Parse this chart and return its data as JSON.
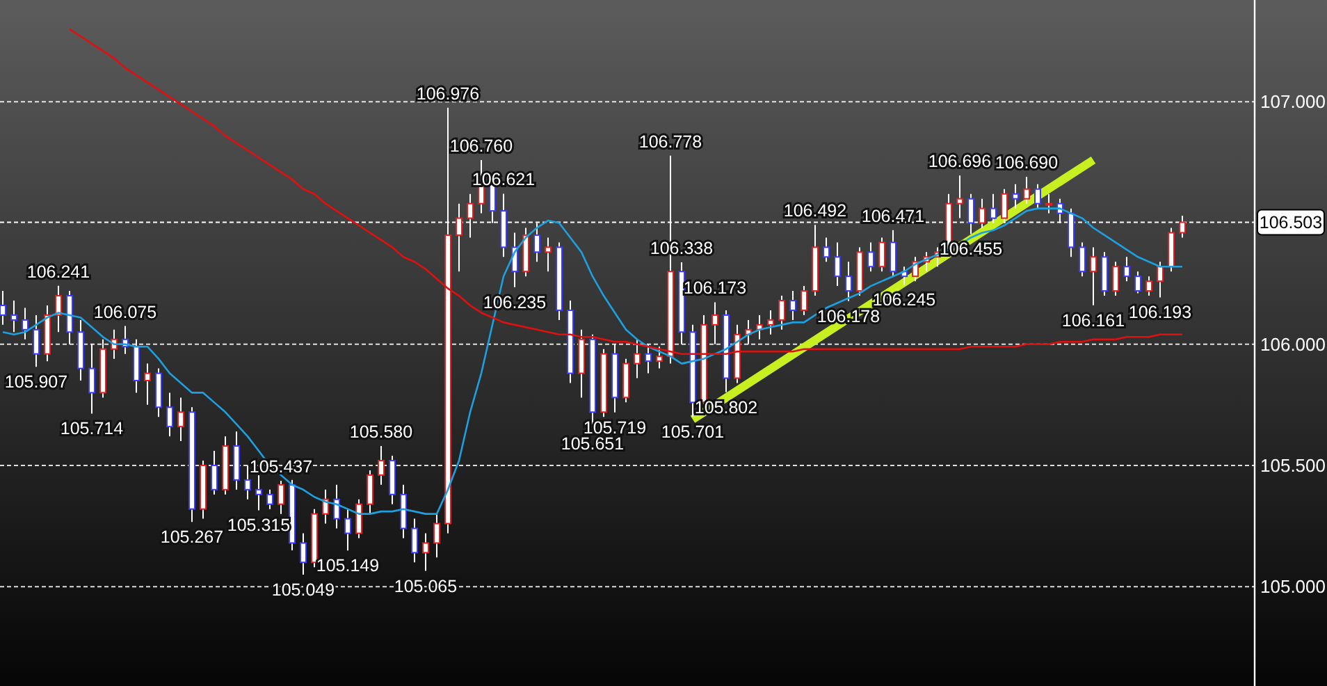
{
  "chart_data": {
    "type": "candlestick",
    "categories": [
      null,
      null,
      null,
      null,
      null,
      null,
      null,
      null,
      null,
      null,
      null,
      null,
      null,
      null,
      null,
      null,
      null,
      null,
      null,
      null,
      null,
      null,
      null,
      null,
      null,
      null,
      null,
      null,
      null,
      null,
      null,
      null,
      null,
      null,
      null,
      null,
      null,
      null,
      null,
      null,
      null,
      null,
      null,
      null,
      null,
      null,
      null,
      null,
      null,
      null,
      null,
      null,
      null,
      null,
      null,
      null,
      null,
      null,
      null,
      null,
      null,
      null,
      null,
      null,
      null,
      null,
      null,
      null,
      null,
      null,
      null,
      null,
      null,
      null,
      null,
      null,
      null,
      null,
      null,
      null,
      null,
      null,
      null,
      null,
      null,
      null,
      null,
      null,
      null,
      null,
      null,
      null,
      null,
      null,
      null,
      null,
      null,
      null,
      null,
      null,
      null,
      null,
      null,
      null,
      null,
      null,
      null
    ],
    "ohlc": [
      [
        106.16,
        106.22,
        106.08,
        106.12
      ],
      [
        106.12,
        106.18,
        106.05,
        106.1
      ],
      [
        106.1,
        106.15,
        106.02,
        106.06
      ],
      [
        106.06,
        106.12,
        105.907,
        105.96
      ],
      [
        105.96,
        106.16,
        105.93,
        106.12
      ],
      [
        106.12,
        106.241,
        106.05,
        106.2
      ],
      [
        106.2,
        106.22,
        106.0,
        106.05
      ],
      [
        106.05,
        106.1,
        105.85,
        105.9
      ],
      [
        105.9,
        106.0,
        105.714,
        105.8
      ],
      [
        105.8,
        106.02,
        105.78,
        105.98
      ],
      [
        105.98,
        106.06,
        105.94,
        106.02
      ],
      [
        106.02,
        106.075,
        105.96,
        105.99
      ],
      [
        105.99,
        106.02,
        105.8,
        105.85
      ],
      [
        105.85,
        105.92,
        105.75,
        105.88
      ],
      [
        105.88,
        105.9,
        105.7,
        105.74
      ],
      [
        105.74,
        105.8,
        105.62,
        105.66
      ],
      [
        105.66,
        105.78,
        105.6,
        105.72
      ],
      [
        105.72,
        105.74,
        105.267,
        105.32
      ],
      [
        105.32,
        105.52,
        105.28,
        105.5
      ],
      [
        105.5,
        105.56,
        105.38,
        105.4
      ],
      [
        105.4,
        105.62,
        105.38,
        105.58
      ],
      [
        105.58,
        105.64,
        105.4,
        105.44
      ],
      [
        105.44,
        105.5,
        105.36,
        105.4
      ],
      [
        105.4,
        105.46,
        105.315,
        105.38
      ],
      [
        105.38,
        105.4,
        105.32,
        105.34
      ],
      [
        105.34,
        105.437,
        105.3,
        105.42
      ],
      [
        105.42,
        105.44,
        105.15,
        105.18
      ],
      [
        105.18,
        105.22,
        105.049,
        105.1
      ],
      [
        105.1,
        105.32,
        105.08,
        105.3
      ],
      [
        105.3,
        105.4,
        105.26,
        105.36
      ],
      [
        105.36,
        105.42,
        105.24,
        105.28
      ],
      [
        105.28,
        105.32,
        105.149,
        105.22
      ],
      [
        105.22,
        105.36,
        105.2,
        105.34
      ],
      [
        105.34,
        105.48,
        105.3,
        105.46
      ],
      [
        105.46,
        105.58,
        105.42,
        105.52
      ],
      [
        105.52,
        105.54,
        105.34,
        105.38
      ],
      [
        105.38,
        105.42,
        105.2,
        105.24
      ],
      [
        105.24,
        105.28,
        105.1,
        105.14
      ],
      [
        105.14,
        105.22,
        105.065,
        105.18
      ],
      [
        105.18,
        105.3,
        105.12,
        105.26
      ],
      [
        105.26,
        106.976,
        105.22,
        106.45
      ],
      [
        106.45,
        106.58,
        106.3,
        106.52
      ],
      [
        106.52,
        106.62,
        106.44,
        106.58
      ],
      [
        106.58,
        106.76,
        106.54,
        106.66
      ],
      [
        106.66,
        106.68,
        106.5,
        106.55
      ],
      [
        106.55,
        106.621,
        106.36,
        106.4
      ],
      [
        106.4,
        106.46,
        106.235,
        106.3
      ],
      [
        106.3,
        106.48,
        106.28,
        106.45
      ],
      [
        106.45,
        106.5,
        106.34,
        106.38
      ],
      [
        106.38,
        106.44,
        106.3,
        106.4
      ],
      [
        106.4,
        106.42,
        106.1,
        106.14
      ],
      [
        106.14,
        106.18,
        105.84,
        105.88
      ],
      [
        105.88,
        106.06,
        105.78,
        106.02
      ],
      [
        106.02,
        106.04,
        105.651,
        105.72
      ],
      [
        105.72,
        105.98,
        105.7,
        105.96
      ],
      [
        105.96,
        106.0,
        105.719,
        105.78
      ],
      [
        105.78,
        105.94,
        105.76,
        105.92
      ],
      [
        105.92,
        106.02,
        105.86,
        105.96
      ],
      [
        105.96,
        106.0,
        105.88,
        105.93
      ],
      [
        105.93,
        105.99,
        105.9,
        105.95
      ],
      [
        105.95,
        106.778,
        105.92,
        106.3
      ],
      [
        106.3,
        106.338,
        106.0,
        106.05
      ],
      [
        106.05,
        106.08,
        105.701,
        105.76
      ],
      [
        105.76,
        106.12,
        105.74,
        106.08
      ],
      [
        106.08,
        106.173,
        106.0,
        106.12
      ],
      [
        106.12,
        106.14,
        105.802,
        105.86
      ],
      [
        105.86,
        106.08,
        105.84,
        106.04
      ],
      [
        106.04,
        106.1,
        106.0,
        106.06
      ],
      [
        106.06,
        106.12,
        106.02,
        106.08
      ],
      [
        106.08,
        106.14,
        106.04,
        106.1
      ],
      [
        106.1,
        106.2,
        106.06,
        106.18
      ],
      [
        106.18,
        106.22,
        106.1,
        106.14
      ],
      [
        106.14,
        106.24,
        106.12,
        106.22
      ],
      [
        106.22,
        106.492,
        106.2,
        106.4
      ],
      [
        106.4,
        106.44,
        106.34,
        106.36
      ],
      [
        106.36,
        106.42,
        106.24,
        106.28
      ],
      [
        106.28,
        106.34,
        106.178,
        106.22
      ],
      [
        106.22,
        106.4,
        106.2,
        106.38
      ],
      [
        106.38,
        106.42,
        106.3,
        106.32
      ],
      [
        106.32,
        106.44,
        106.3,
        106.42
      ],
      [
        106.42,
        106.471,
        106.28,
        106.3
      ],
      [
        106.3,
        106.32,
        106.245,
        106.28
      ],
      [
        106.28,
        106.36,
        106.26,
        106.34
      ],
      [
        106.34,
        106.38,
        106.3,
        106.36
      ],
      [
        106.36,
        106.4,
        106.32,
        106.38
      ],
      [
        106.38,
        106.62,
        106.36,
        106.58
      ],
      [
        106.58,
        106.696,
        106.52,
        106.6
      ],
      [
        106.6,
        106.62,
        106.455,
        106.5
      ],
      [
        106.5,
        106.6,
        106.48,
        106.56
      ],
      [
        106.56,
        106.62,
        106.5,
        106.52
      ],
      [
        106.52,
        106.64,
        106.5,
        106.62
      ],
      [
        106.62,
        106.66,
        106.56,
        106.6
      ],
      [
        106.6,
        106.69,
        106.58,
        106.64
      ],
      [
        106.64,
        106.66,
        106.56,
        106.58
      ],
      [
        106.58,
        106.62,
        106.54,
        106.58
      ],
      [
        106.58,
        106.6,
        106.5,
        106.54
      ],
      [
        106.54,
        106.56,
        106.36,
        106.4
      ],
      [
        106.4,
        106.42,
        106.28,
        106.3
      ],
      [
        106.3,
        106.4,
        106.161,
        106.36
      ],
      [
        106.36,
        106.38,
        106.2,
        106.22
      ],
      [
        106.22,
        106.34,
        106.2,
        106.32
      ],
      [
        106.32,
        106.36,
        106.26,
        106.28
      ],
      [
        106.28,
        106.3,
        106.21,
        106.22
      ],
      [
        106.22,
        106.28,
        106.2,
        106.26
      ],
      [
        106.26,
        106.34,
        106.193,
        106.32
      ],
      [
        106.32,
        106.48,
        106.3,
        106.46
      ],
      [
        106.46,
        106.53,
        106.44,
        106.503
      ]
    ],
    "colors": [
      "#3a3aff",
      "#3a3aff",
      "#3a3aff",
      "#3a3aff",
      "#e02020",
      "#e02020",
      "#3a3aff",
      "#3a3aff",
      "#3a3aff",
      "#e02020",
      "#e02020",
      "#3a3aff",
      "#3a3aff",
      "#e02020",
      "#3a3aff",
      "#3a3aff",
      "#e02020",
      "#3a3aff",
      "#e02020",
      "#3a3aff",
      "#e02020",
      "#3a3aff",
      "#3a3aff",
      "#3a3aff",
      "#3a3aff",
      "#e02020",
      "#3a3aff",
      "#3a3aff",
      "#e02020",
      "#e02020",
      "#3a3aff",
      "#3a3aff",
      "#e02020",
      "#e02020",
      "#e02020",
      "#3a3aff",
      "#3a3aff",
      "#3a3aff",
      "#e02020",
      "#e02020",
      "#e02020",
      "#e02020",
      "#e02020",
      "#e02020",
      "#3a3aff",
      "#3a3aff",
      "#3a3aff",
      "#e02020",
      "#3a3aff",
      "#e02020",
      "#3a3aff",
      "#3a3aff",
      "#e02020",
      "#3a3aff",
      "#e02020",
      "#3a3aff",
      "#e02020",
      "#e02020",
      "#3a3aff",
      "#e02020",
      "#e02020",
      "#3a3aff",
      "#3a3aff",
      "#e02020",
      "#e02020",
      "#3a3aff",
      "#e02020",
      "#e02020",
      "#e02020",
      "#e02020",
      "#e02020",
      "#3a3aff",
      "#e02020",
      "#e02020",
      "#3a3aff",
      "#3a3aff",
      "#3a3aff",
      "#e02020",
      "#3a3aff",
      "#e02020",
      "#3a3aff",
      "#3a3aff",
      "#e02020",
      "#e02020",
      "#e02020",
      "#e02020",
      "#e02020",
      "#3a3aff",
      "#e02020",
      "#3a3aff",
      "#e02020",
      "#3a3aff",
      "#e02020",
      "#3a3aff",
      "#e02020",
      "#3a3aff",
      "#3a3aff",
      "#3a3aff",
      "#e02020",
      "#3a3aff",
      "#e02020",
      "#3a3aff",
      "#3a3aff",
      "#e02020",
      "#e02020",
      "#e02020",
      "#e02020"
    ],
    "series": [
      {
        "type": "line",
        "color": "#1ea0e0",
        "values": [
          106.05,
          106.04,
          106.05,
          106.08,
          106.11,
          106.13,
          106.12,
          106.11,
          106.07,
          106.03,
          106.0,
          106.0,
          105.99,
          105.99,
          105.94,
          105.88,
          105.84,
          105.8,
          105.8,
          105.76,
          105.72,
          105.67,
          105.62,
          105.56,
          105.5,
          105.46,
          105.42,
          105.4,
          105.37,
          105.35,
          105.34,
          105.32,
          105.3,
          105.3,
          105.31,
          105.31,
          105.32,
          105.31,
          105.3,
          105.3,
          105.4,
          105.52,
          105.72,
          105.88,
          106.08,
          106.28,
          106.38,
          106.44,
          106.48,
          106.51,
          106.5,
          106.44,
          106.38,
          106.28,
          106.2,
          106.13,
          106.06,
          106.02,
          105.99,
          105.97,
          105.95,
          105.92,
          105.93,
          105.94,
          105.96,
          105.98,
          106.01,
          106.04,
          106.06,
          106.07,
          106.08,
          106.09,
          106.09,
          106.12,
          106.15,
          106.17,
          106.19,
          106.21,
          106.24,
          106.26,
          106.28,
          106.3,
          106.33,
          106.35,
          106.37,
          106.39,
          106.41,
          106.44,
          106.46,
          106.47,
          106.49,
          106.52,
          106.55,
          106.56,
          106.56,
          106.56,
          106.54,
          106.52,
          106.48,
          106.45,
          106.42,
          106.39,
          106.36,
          106.34,
          106.32,
          106.32,
          106.32
        ]
      },
      {
        "type": "line",
        "color": "#e01010",
        "values": [
          null,
          null,
          null,
          null,
          null,
          null,
          107.3,
          107.27,
          107.24,
          107.21,
          107.18,
          107.14,
          107.11,
          107.08,
          107.05,
          107.02,
          106.99,
          106.96,
          106.93,
          106.9,
          106.86,
          106.83,
          106.8,
          106.77,
          106.74,
          106.71,
          106.68,
          106.64,
          106.62,
          106.58,
          106.55,
          106.52,
          106.49,
          106.46,
          106.43,
          106.4,
          106.36,
          106.34,
          106.31,
          106.27,
          106.23,
          106.2,
          106.16,
          106.13,
          106.11,
          106.09,
          106.08,
          106.07,
          106.06,
          106.05,
          106.04,
          106.04,
          106.03,
          106.03,
          106.02,
          106.01,
          106.01,
          106.0,
          105.99,
          105.98,
          105.97,
          105.96,
          105.96,
          105.96,
          105.96,
          105.96,
          105.97,
          105.97,
          105.97,
          105.97,
          105.97,
          105.97,
          105.98,
          105.98,
          105.98,
          105.98,
          105.98,
          105.98,
          105.98,
          105.98,
          105.98,
          105.98,
          105.98,
          105.98,
          105.98,
          105.98,
          105.98,
          105.99,
          105.99,
          105.99,
          105.99,
          105.99,
          106.0,
          106.0,
          106.0,
          106.01,
          106.01,
          106.01,
          106.02,
          106.02,
          106.02,
          106.03,
          106.03,
          106.03,
          106.04,
          106.04,
          106.04
        ]
      },
      {
        "type": "line",
        "color": "#c8f020",
        "values": [
          null,
          null,
          null,
          null,
          null,
          null,
          null,
          null,
          null,
          null,
          null,
          null,
          null,
          null,
          null,
          null,
          null,
          null,
          null,
          null,
          null,
          null,
          null,
          null,
          null,
          null,
          null,
          null,
          null,
          null,
          null,
          null,
          null,
          null,
          null,
          null,
          null,
          null,
          null,
          null,
          null,
          null,
          null,
          null,
          null,
          null,
          null,
          null,
          null,
          null,
          null,
          null,
          null,
          null,
          null,
          null,
          null,
          null,
          null,
          null,
          null,
          null,
          105.69,
          null,
          null,
          null,
          null,
          null,
          null,
          null,
          null,
          null,
          null,
          null,
          null,
          null,
          null,
          null,
          null,
          null,
          null,
          null,
          null,
          null,
          null,
          null,
          null,
          null,
          null,
          null,
          null,
          null,
          null,
          null,
          null,
          null,
          null,
          null,
          106.76,
          null,
          null,
          null,
          null,
          null,
          null,
          null,
          null
        ]
      }
    ],
    "ylim": [
      104.59,
      107.42
    ],
    "yticks": [
      {
        "value": 105,
        "label": "105.000"
      },
      {
        "value": 105.5,
        "label": "105.500"
      },
      {
        "value": 106,
        "label": "106.000"
      },
      {
        "value": 107,
        "label": "107.000"
      }
    ],
    "grid": "y",
    "tick_labels": "y",
    "ref_lines": [
      {
        "axis": "y",
        "value": 106.503,
        "label": "106.503"
      }
    ],
    "annotations": [
      {
        "text": "106.241",
        "y": 106.241
      },
      {
        "text": "106.075",
        "y": 106.075
      },
      {
        "text": "105.907",
        "y": 105.907
      },
      {
        "text": "105.714",
        "y": 105.714
      },
      {
        "text": "105.267",
        "y": 105.267
      },
      {
        "text": "105.315",
        "y": 105.315
      },
      {
        "text": "105.437",
        "y": 105.437
      },
      {
        "text": "105.049",
        "y": 105.049
      },
      {
        "text": "105.149",
        "y": 105.149
      },
      {
        "text": "105.580",
        "y": 105.58
      },
      {
        "text": "105.065",
        "y": 105.065
      },
      {
        "text": "106.976",
        "y": 106.976
      },
      {
        "text": "106.760",
        "y": 106.76
      },
      {
        "text": "106.621",
        "y": 106.621
      },
      {
        "text": "106.235",
        "y": 106.235
      },
      {
        "text": "105.651",
        "y": 105.651
      },
      {
        "text": "105.719",
        "y": 105.719
      },
      {
        "text": "106.778",
        "y": 106.778
      },
      {
        "text": "106.338",
        "y": 106.338
      },
      {
        "text": "105.701",
        "y": 105.701
      },
      {
        "text": "106.173",
        "y": 106.173
      },
      {
        "text": "105.802",
        "y": 105.802
      },
      {
        "text": "106.492",
        "y": 106.492
      },
      {
        "text": "106.178",
        "y": 106.178
      },
      {
        "text": "106.471",
        "y": 106.471
      },
      {
        "text": "106.245",
        "y": 106.245
      },
      {
        "text": "106.696",
        "y": 106.696
      },
      {
        "text": "106.455",
        "y": 106.455
      },
      {
        "text": "106.690",
        "y": 106.69
      },
      {
        "text": "106.161",
        "y": 106.161
      },
      {
        "text": "106.193",
        "y": 106.193
      }
    ]
  }
}
